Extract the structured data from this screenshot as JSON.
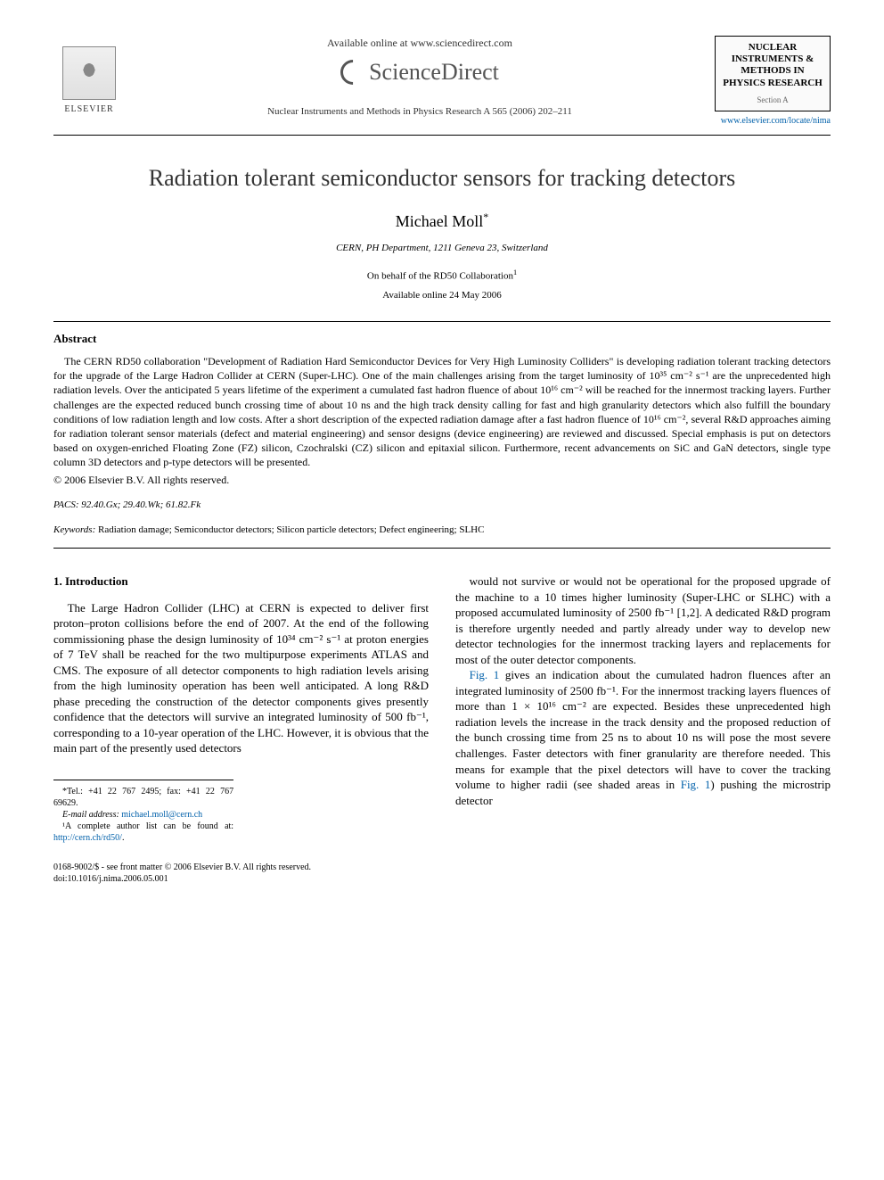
{
  "header": {
    "elsevier_name": "ELSEVIER",
    "available_online": "Available online at www.sciencedirect.com",
    "sciencedirect": "ScienceDirect",
    "journal_ref": "Nuclear Instruments and Methods in Physics Research A 565 (2006) 202–211",
    "journal_box_title": "NUCLEAR INSTRUMENTS & METHODS IN PHYSICS RESEARCH",
    "journal_box_section": "Section A",
    "journal_link": "www.elsevier.com/locate/nima"
  },
  "article": {
    "title": "Radiation tolerant semiconductor sensors for tracking detectors",
    "author": "Michael Moll",
    "author_marker": "*",
    "affiliation": "CERN, PH Department, 1211 Geneva 23, Switzerland",
    "behalf": "On behalf of the RD50 Collaboration",
    "behalf_marker": "1",
    "available_date": "Available online 24 May 2006"
  },
  "abstract": {
    "heading": "Abstract",
    "body": "The CERN RD50 collaboration \"Development of Radiation Hard Semiconductor Devices for Very High Luminosity Colliders\" is developing radiation tolerant tracking detectors for the upgrade of the Large Hadron Collider at CERN (Super-LHC). One of the main challenges arising from the target luminosity of 10³⁵ cm⁻² s⁻¹ are the unprecedented high radiation levels. Over the anticipated 5 years lifetime of the experiment a cumulated fast hadron fluence of about 10¹⁶ cm⁻² will be reached for the innermost tracking layers. Further challenges are the expected reduced bunch crossing time of about 10 ns and the high track density calling for fast and high granularity detectors which also fulfill the boundary conditions of low radiation length and low costs. After a short description of the expected radiation damage after a fast hadron fluence of 10¹⁶ cm⁻², several R&D approaches aiming for radiation tolerant sensor materials (defect and material engineering) and sensor designs (device engineering) are reviewed and discussed. Special emphasis is put on detectors based on oxygen-enriched Floating Zone (FZ) silicon, Czochralski (CZ) silicon and epitaxial silicon. Furthermore, recent advancements on SiC and GaN detectors, single type column 3D detectors and p-type detectors will be presented.",
    "copyright": "© 2006 Elsevier B.V. All rights reserved."
  },
  "pacs": {
    "label": "PACS:",
    "codes": "92.40.Gx; 29.40.Wk; 61.82.Fk"
  },
  "keywords": {
    "label": "Keywords:",
    "list": "Radiation damage; Semiconductor detectors; Silicon particle detectors; Defect engineering; SLHC"
  },
  "intro": {
    "heading": "1. Introduction",
    "col1": "The Large Hadron Collider (LHC) at CERN is expected to deliver first proton–proton collisions before the end of 2007. At the end of the following commissioning phase the design luminosity of 10³⁴ cm⁻² s⁻¹ at proton energies of 7 TeV shall be reached for the two multipurpose experiments ATLAS and CMS. The exposure of all detector components to high radiation levels arising from the high luminosity operation has been well anticipated. A long R&D phase preceding the construction of the detector components gives presently confidence that the detectors will survive an integrated luminosity of 500 fb⁻¹, corresponding to a 10-year operation of the LHC. However, it is obvious that the main part of the presently used detectors",
    "col2_p1": "would not survive or would not be operational for the proposed upgrade of the machine to a 10 times higher luminosity (Super-LHC or SLHC) with a proposed accumulated luminosity of 2500 fb⁻¹ [1,2]. A dedicated R&D program is therefore urgently needed and partly already under way to develop new detector technologies for the innermost tracking layers and replacements for most of the outer detector components.",
    "col2_p2_pre": "Fig. 1",
    "col2_p2": " gives an indication about the cumulated hadron fluences after an integrated luminosity of 2500 fb⁻¹. For the innermost tracking layers fluences of more than 1 × 10¹⁶ cm⁻² are expected. Besides these unprecedented high radiation levels the increase in the track density and the proposed reduction of the bunch crossing time from 25 ns to about 10 ns will pose the most severe challenges. Faster detectors with finer granularity are therefore needed. This means for example that the pixel detectors will have to cover the tracking volume to higher radii (see shaded areas in ",
    "col2_p2_mid": "Fig. 1",
    "col2_p2_post": ") pushing the microstrip detector"
  },
  "footnotes": {
    "tel": "*Tel.: +41 22 767 2495; fax: +41 22 767 69629.",
    "email_label": "E-mail address:",
    "email": "michael.moll@cern.ch",
    "note1_pre": "¹A complete author list can be found at: ",
    "note1_link": "http://cern.ch/rd50/",
    "note1_post": "."
  },
  "bottom": {
    "line1": "0168-9002/$ - see front matter © 2006 Elsevier B.V. All rights reserved.",
    "line2": "doi:10.1016/j.nima.2006.05.001"
  },
  "colors": {
    "link": "#0060aa",
    "text": "#000000",
    "title": "#333333"
  }
}
